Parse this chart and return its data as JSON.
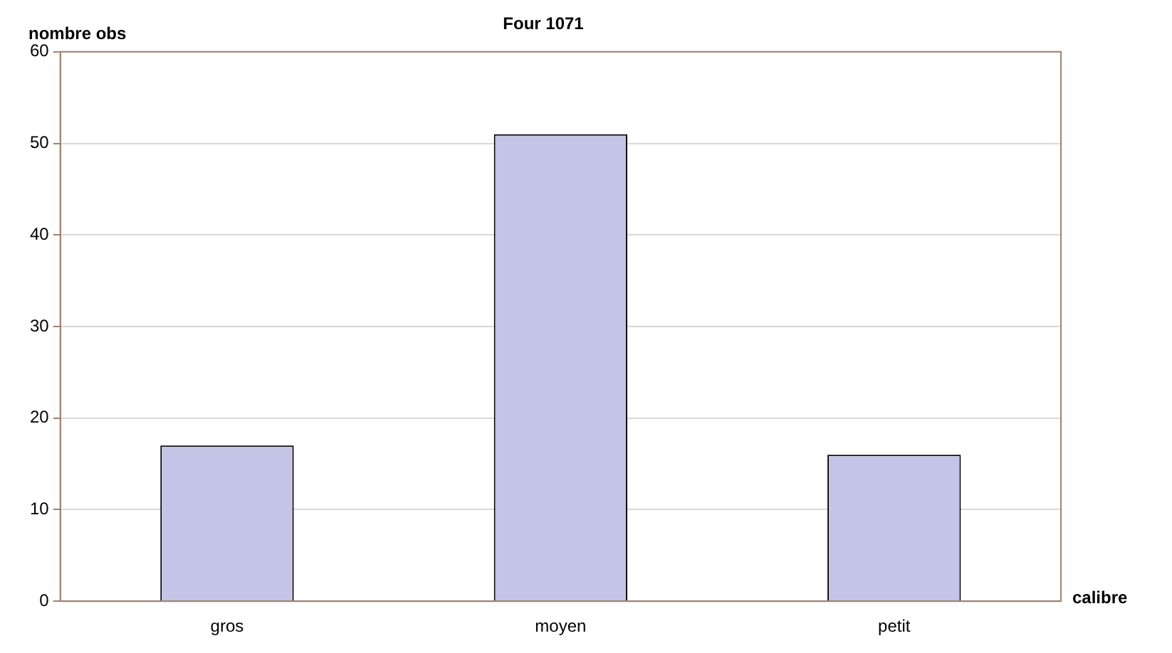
{
  "chart_data": {
    "type": "bar",
    "title": "Four 1071",
    "xlabel": "calibre",
    "ylabel": "nombre obs",
    "categories": [
      "gros",
      "moyen",
      "petit"
    ],
    "values": [
      17,
      51,
      16
    ],
    "color": "#c4c4e6",
    "ylim": [
      0,
      60
    ],
    "yticks": [
      0,
      10,
      20,
      30,
      40,
      50,
      60
    ],
    "grid": "y",
    "legend": false
  }
}
